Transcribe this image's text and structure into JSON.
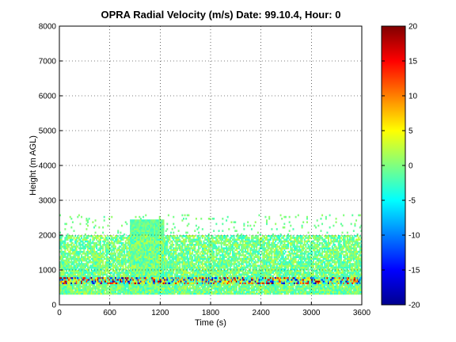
{
  "chart_data": {
    "type": "heatmap",
    "title": "OPRA Radial Velocity (m/s)  Date: 99.10.4, Hour: 0",
    "xlabel": "Time (s)",
    "ylabel": "Height (m AGL)",
    "xlim": [
      0,
      3600
    ],
    "ylim": [
      0,
      8000
    ],
    "xticks": [
      "0",
      "600",
      "1200",
      "1800",
      "2400",
      "3000",
      "3600"
    ],
    "yticks": [
      "0",
      "1000",
      "2000",
      "3000",
      "4000",
      "5000",
      "6000",
      "7000",
      "8000"
    ],
    "grid": true,
    "colorbar": {
      "colormap": "jet",
      "range": [
        -20,
        20
      ],
      "ticks": [
        "-20",
        "-15",
        "-10",
        "-5",
        "0",
        "5",
        "10",
        "15",
        "20"
      ]
    },
    "data_summary": {
      "dense_layer_height_range_m": [
        300,
        2000
      ],
      "sparse_returns_height_range_m": [
        2000,
        2600
      ],
      "surface_band_height_range_m": [
        600,
        800
      ],
      "dominant_velocity_ms": [
        -4,
        3
      ],
      "surface_band_velocity_ms": [
        -18,
        20
      ],
      "plume_time_s": [
        830,
        1230
      ],
      "plume_top_m": 2450
    }
  }
}
